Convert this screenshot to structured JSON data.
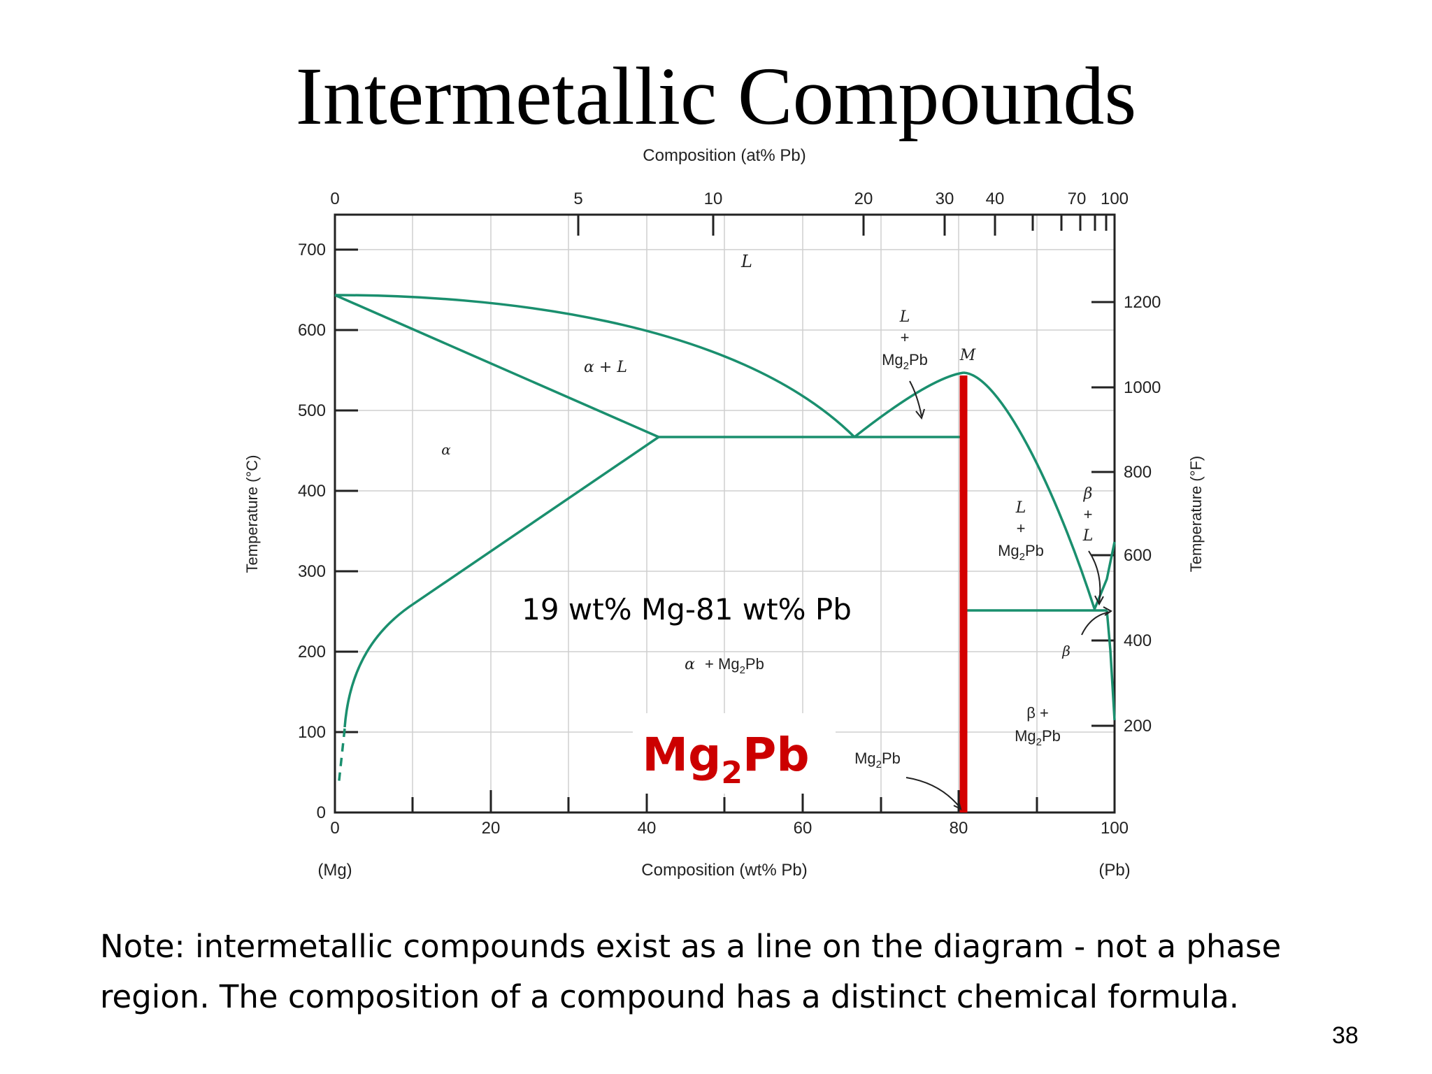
{
  "slide": {
    "title": "Intermetallic Compounds",
    "note": "Note: intermetallic compounds exist as a line on the diagram - not a phase region. The composition of a compound has a distinct chemical formula.",
    "page_number": "38"
  },
  "diagram": {
    "top_axis_label": "Composition (at% Pb)",
    "top_ticks": [
      "0",
      "5",
      "10",
      "20",
      "30",
      "40",
      "70",
      "100"
    ],
    "bottom_axis_label": "Composition (wt% Pb)",
    "bottom_ticks": [
      "0",
      "20",
      "40",
      "60",
      "80",
      "100"
    ],
    "bottom_end_left": "(Mg)",
    "bottom_end_right": "(Pb)",
    "left_axis_label": "Temperature (°C)",
    "left_ticks": [
      "0",
      "100",
      "200",
      "300",
      "400",
      "500",
      "600",
      "700"
    ],
    "right_axis_label": "Temperature (°F)",
    "right_ticks": [
      "200",
      "400",
      "600",
      "800",
      "1000",
      "1200"
    ],
    "regions": {
      "liquid": "L",
      "alpha_liquid": "α + L",
      "alpha": "α",
      "liquid_mg2pb_top": {
        "line1": "L",
        "line2": "+",
        "line3": "Mg",
        "sub": "2",
        "line3b": "Pb"
      },
      "point_m": "M",
      "liquid_mg2pb_right": {
        "line1": "L",
        "line2": "+",
        "line3": "Mg",
        "sub": "2",
        "line3b": "Pb"
      },
      "beta_liquid": {
        "line1": "β",
        "line2": "+",
        "line3": "L"
      },
      "alpha_mg2pb": {
        "a": "α",
        "b": "+ Mg",
        "sub": "2",
        "c": "Pb"
      },
      "beta_small": "β",
      "beta_mg2pb": {
        "line1": "β +",
        "line2": "Mg",
        "sub": "2",
        "line2b": "Pb"
      },
      "mg2pb_pointer": {
        "a": "Mg",
        "sub": "2",
        "b": "Pb"
      }
    },
    "composition_annotation": "19 wt% Mg-81 wt% Pb",
    "compound_label": {
      "a": "Mg",
      "sub": "2",
      "b": "Pb"
    },
    "colors": {
      "phase_lines": "#1a8f6e",
      "compound_line": "#d40000",
      "compound_label": "#cc0000"
    }
  }
}
